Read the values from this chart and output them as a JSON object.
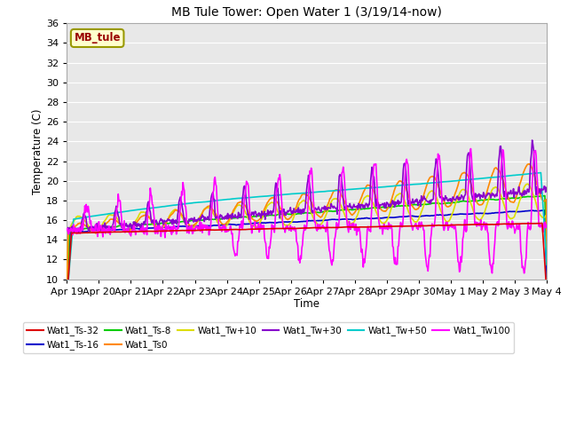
{
  "title": "MB Tule Tower: Open Water 1 (3/19/14-now)",
  "xlabel": "Time",
  "ylabel": "Temperature (C)",
  "ylim": [
    10,
    36
  ],
  "yticks": [
    10,
    12,
    14,
    16,
    18,
    20,
    22,
    24,
    26,
    28,
    30,
    32,
    34,
    36
  ],
  "plot_bg": "#e8e8e8",
  "series": {
    "Wat1_Ts-32": {
      "color": "#dd0000",
      "lw": 1.2
    },
    "Wat1_Ts-16": {
      "color": "#0000cc",
      "lw": 1.2
    },
    "Wat1_Ts-8": {
      "color": "#00cc00",
      "lw": 1.2
    },
    "Wat1_Ts0": {
      "color": "#ff8800",
      "lw": 1.2
    },
    "Wat1_Tw+10": {
      "color": "#dddd00",
      "lw": 1.2
    },
    "Wat1_Tw+30": {
      "color": "#8800cc",
      "lw": 1.2
    },
    "Wat1_Tw+50": {
      "color": "#00cccc",
      "lw": 1.2
    },
    "Wat1_Tw100": {
      "color": "#ff00ff",
      "lw": 1.2
    }
  },
  "xtick_labels": [
    "Apr 19",
    "Apr 20",
    "Apr 21",
    "Apr 22",
    "Apr 23",
    "Apr 24",
    "Apr 25",
    "Apr 26",
    "Apr 27",
    "Apr 28",
    "Apr 29",
    "Apr 30",
    "May 1",
    "May 2",
    "May 3",
    "May 4"
  ],
  "legend_label": "MB_tule",
  "legend_bg": "#ffffcc",
  "legend_border": "#999900"
}
